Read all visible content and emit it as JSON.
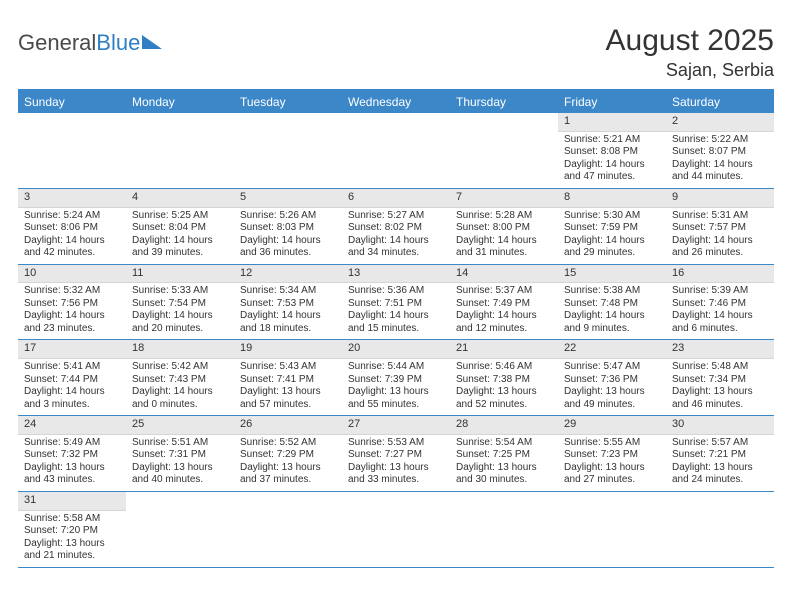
{
  "header": {
    "logo_general": "General",
    "logo_blue": "Blue",
    "title": "August 2025",
    "location": "Sajan, Serbia"
  },
  "colors": {
    "header_blue": "#3b87c8",
    "logo_blue": "#2f7fc2",
    "daynum_bg": "#e8e8e8",
    "text": "#333333"
  },
  "day_names": [
    "Sunday",
    "Monday",
    "Tuesday",
    "Wednesday",
    "Thursday",
    "Friday",
    "Saturday"
  ],
  "weeks": [
    [
      null,
      null,
      null,
      null,
      null,
      {
        "n": "1",
        "sr": "Sunrise: 5:21 AM",
        "ss": "Sunset: 8:08 PM",
        "dl": "Daylight: 14 hours and 47 minutes."
      },
      {
        "n": "2",
        "sr": "Sunrise: 5:22 AM",
        "ss": "Sunset: 8:07 PM",
        "dl": "Daylight: 14 hours and 44 minutes."
      }
    ],
    [
      {
        "n": "3",
        "sr": "Sunrise: 5:24 AM",
        "ss": "Sunset: 8:06 PM",
        "dl": "Daylight: 14 hours and 42 minutes."
      },
      {
        "n": "4",
        "sr": "Sunrise: 5:25 AM",
        "ss": "Sunset: 8:04 PM",
        "dl": "Daylight: 14 hours and 39 minutes."
      },
      {
        "n": "5",
        "sr": "Sunrise: 5:26 AM",
        "ss": "Sunset: 8:03 PM",
        "dl": "Daylight: 14 hours and 36 minutes."
      },
      {
        "n": "6",
        "sr": "Sunrise: 5:27 AM",
        "ss": "Sunset: 8:02 PM",
        "dl": "Daylight: 14 hours and 34 minutes."
      },
      {
        "n": "7",
        "sr": "Sunrise: 5:28 AM",
        "ss": "Sunset: 8:00 PM",
        "dl": "Daylight: 14 hours and 31 minutes."
      },
      {
        "n": "8",
        "sr": "Sunrise: 5:30 AM",
        "ss": "Sunset: 7:59 PM",
        "dl": "Daylight: 14 hours and 29 minutes."
      },
      {
        "n": "9",
        "sr": "Sunrise: 5:31 AM",
        "ss": "Sunset: 7:57 PM",
        "dl": "Daylight: 14 hours and 26 minutes."
      }
    ],
    [
      {
        "n": "10",
        "sr": "Sunrise: 5:32 AM",
        "ss": "Sunset: 7:56 PM",
        "dl": "Daylight: 14 hours and 23 minutes."
      },
      {
        "n": "11",
        "sr": "Sunrise: 5:33 AM",
        "ss": "Sunset: 7:54 PM",
        "dl": "Daylight: 14 hours and 20 minutes."
      },
      {
        "n": "12",
        "sr": "Sunrise: 5:34 AM",
        "ss": "Sunset: 7:53 PM",
        "dl": "Daylight: 14 hours and 18 minutes."
      },
      {
        "n": "13",
        "sr": "Sunrise: 5:36 AM",
        "ss": "Sunset: 7:51 PM",
        "dl": "Daylight: 14 hours and 15 minutes."
      },
      {
        "n": "14",
        "sr": "Sunrise: 5:37 AM",
        "ss": "Sunset: 7:49 PM",
        "dl": "Daylight: 14 hours and 12 minutes."
      },
      {
        "n": "15",
        "sr": "Sunrise: 5:38 AM",
        "ss": "Sunset: 7:48 PM",
        "dl": "Daylight: 14 hours and 9 minutes."
      },
      {
        "n": "16",
        "sr": "Sunrise: 5:39 AM",
        "ss": "Sunset: 7:46 PM",
        "dl": "Daylight: 14 hours and 6 minutes."
      }
    ],
    [
      {
        "n": "17",
        "sr": "Sunrise: 5:41 AM",
        "ss": "Sunset: 7:44 PM",
        "dl": "Daylight: 14 hours and 3 minutes."
      },
      {
        "n": "18",
        "sr": "Sunrise: 5:42 AM",
        "ss": "Sunset: 7:43 PM",
        "dl": "Daylight: 14 hours and 0 minutes."
      },
      {
        "n": "19",
        "sr": "Sunrise: 5:43 AM",
        "ss": "Sunset: 7:41 PM",
        "dl": "Daylight: 13 hours and 57 minutes."
      },
      {
        "n": "20",
        "sr": "Sunrise: 5:44 AM",
        "ss": "Sunset: 7:39 PM",
        "dl": "Daylight: 13 hours and 55 minutes."
      },
      {
        "n": "21",
        "sr": "Sunrise: 5:46 AM",
        "ss": "Sunset: 7:38 PM",
        "dl": "Daylight: 13 hours and 52 minutes."
      },
      {
        "n": "22",
        "sr": "Sunrise: 5:47 AM",
        "ss": "Sunset: 7:36 PM",
        "dl": "Daylight: 13 hours and 49 minutes."
      },
      {
        "n": "23",
        "sr": "Sunrise: 5:48 AM",
        "ss": "Sunset: 7:34 PM",
        "dl": "Daylight: 13 hours and 46 minutes."
      }
    ],
    [
      {
        "n": "24",
        "sr": "Sunrise: 5:49 AM",
        "ss": "Sunset: 7:32 PM",
        "dl": "Daylight: 13 hours and 43 minutes."
      },
      {
        "n": "25",
        "sr": "Sunrise: 5:51 AM",
        "ss": "Sunset: 7:31 PM",
        "dl": "Daylight: 13 hours and 40 minutes."
      },
      {
        "n": "26",
        "sr": "Sunrise: 5:52 AM",
        "ss": "Sunset: 7:29 PM",
        "dl": "Daylight: 13 hours and 37 minutes."
      },
      {
        "n": "27",
        "sr": "Sunrise: 5:53 AM",
        "ss": "Sunset: 7:27 PM",
        "dl": "Daylight: 13 hours and 33 minutes."
      },
      {
        "n": "28",
        "sr": "Sunrise: 5:54 AM",
        "ss": "Sunset: 7:25 PM",
        "dl": "Daylight: 13 hours and 30 minutes."
      },
      {
        "n": "29",
        "sr": "Sunrise: 5:55 AM",
        "ss": "Sunset: 7:23 PM",
        "dl": "Daylight: 13 hours and 27 minutes."
      },
      {
        "n": "30",
        "sr": "Sunrise: 5:57 AM",
        "ss": "Sunset: 7:21 PM",
        "dl": "Daylight: 13 hours and 24 minutes."
      }
    ],
    [
      {
        "n": "31",
        "sr": "Sunrise: 5:58 AM",
        "ss": "Sunset: 7:20 PM",
        "dl": "Daylight: 13 hours and 21 minutes."
      },
      null,
      null,
      null,
      null,
      null,
      null
    ]
  ]
}
